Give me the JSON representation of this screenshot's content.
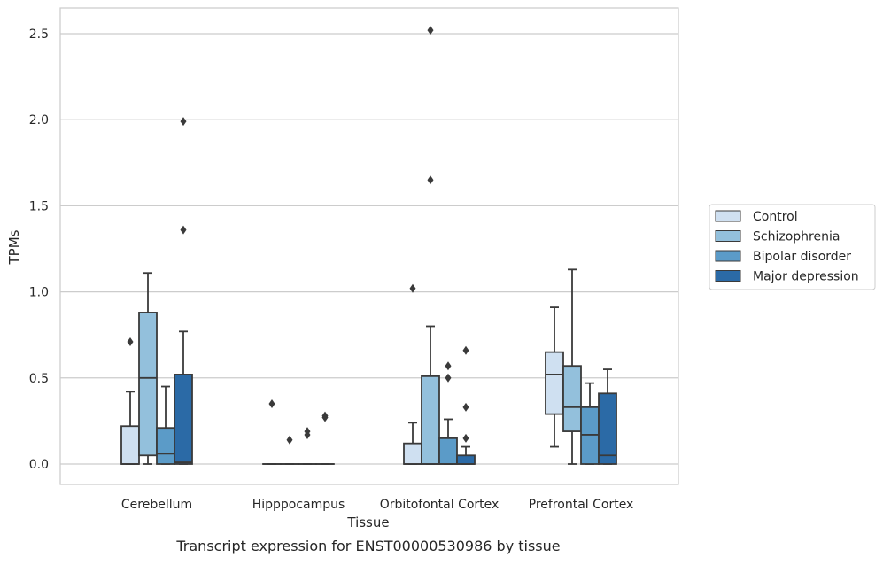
{
  "chart_data": {
    "type": "boxplot",
    "title": "",
    "xlabel": "Tissue",
    "ylabel": "TPMs",
    "caption": "Transcript expression for ENST00000530986 by tissue",
    "ylim": [
      -0.12,
      2.6
    ],
    "yticks": [
      "0.0",
      "0.5",
      "1.0",
      "1.5",
      "2.0",
      "2.5"
    ],
    "grid": "horizontal",
    "legend_position": "right-outside",
    "categories": [
      "Cerebellum",
      "Hipppocampus",
      "Orbitofontal Cortex",
      "Prefrontal Cortex"
    ],
    "series": [
      {
        "name": "Control",
        "color": "#cfe0f1",
        "boxes": [
          {
            "min": 0.0,
            "q1": 0.0,
            "median": 0.0,
            "q3": 0.22,
            "max": 0.42,
            "outliers": [
              0.71
            ]
          },
          {
            "min": 0.0,
            "q1": 0.0,
            "median": 0.0,
            "q3": 0.0,
            "max": 0.0,
            "outliers": [
              0.35
            ]
          },
          {
            "min": 0.0,
            "q1": 0.0,
            "median": 0.0,
            "q3": 0.12,
            "max": 0.24,
            "outliers": [
              1.02
            ]
          },
          {
            "min": 0.1,
            "q1": 0.29,
            "median": 0.52,
            "q3": 0.65,
            "max": 0.91,
            "outliers": []
          }
        ]
      },
      {
        "name": "Schizophrenia",
        "color": "#93c0dc",
        "boxes": [
          {
            "min": 0.0,
            "q1": 0.05,
            "median": 0.5,
            "q3": 0.88,
            "max": 1.11,
            "outliers": []
          },
          {
            "min": 0.0,
            "q1": 0.0,
            "median": 0.0,
            "q3": 0.0,
            "max": 0.0,
            "outliers": [
              0.14
            ]
          },
          {
            "min": 0.0,
            "q1": 0.0,
            "median": 0.0,
            "q3": 0.51,
            "max": 0.8,
            "outliers": [
              1.65,
              2.52
            ]
          },
          {
            "min": 0.0,
            "q1": 0.19,
            "median": 0.33,
            "q3": 0.57,
            "max": 1.13,
            "outliers": []
          }
        ]
      },
      {
        "name": "Bipolar disorder",
        "color": "#5b9bc8",
        "boxes": [
          {
            "min": 0.0,
            "q1": 0.0,
            "median": 0.06,
            "q3": 0.21,
            "max": 0.45,
            "outliers": []
          },
          {
            "min": 0.0,
            "q1": 0.0,
            "median": 0.0,
            "q3": 0.0,
            "max": 0.0,
            "outliers": [
              0.17,
              0.19
            ]
          },
          {
            "min": 0.0,
            "q1": 0.0,
            "median": 0.0,
            "q3": 0.15,
            "max": 0.26,
            "outliers": [
              0.5,
              0.57
            ]
          },
          {
            "min": 0.0,
            "q1": 0.0,
            "median": 0.17,
            "q3": 0.33,
            "max": 0.47,
            "outliers": []
          }
        ]
      },
      {
        "name": "Major depression",
        "color": "#2b6aa6",
        "boxes": [
          {
            "min": 0.0,
            "q1": 0.0,
            "median": 0.01,
            "q3": 0.52,
            "max": 0.77,
            "outliers": [
              1.36,
              1.99
            ]
          },
          {
            "min": 0.0,
            "q1": 0.0,
            "median": 0.0,
            "q3": 0.0,
            "max": 0.0,
            "outliers": [
              0.27,
              0.28
            ]
          },
          {
            "min": 0.0,
            "q1": 0.0,
            "median": 0.0,
            "q3": 0.05,
            "max": 0.1,
            "outliers": [
              0.15,
              0.33,
              0.66
            ]
          },
          {
            "min": 0.0,
            "q1": 0.0,
            "median": 0.05,
            "q3": 0.41,
            "max": 0.55,
            "outliers": []
          }
        ]
      }
    ]
  }
}
